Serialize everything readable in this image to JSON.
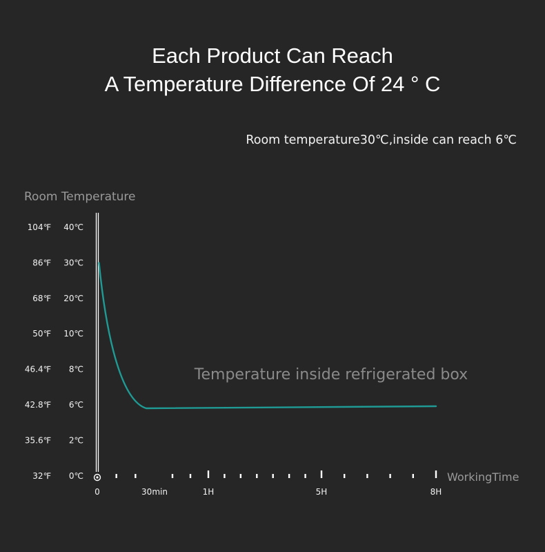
{
  "header": {
    "title_line_1": "Each Product Can Reach",
    "title_line_2": "A Temperature Difference Of 24 ° C",
    "subtitle": "Room temperature30℃,inside can reach 6℃"
  },
  "chart_data": {
    "type": "line",
    "title": "Each Product Can Reach A Temperature Difference Of 24 ° C",
    "subtitle": "Room temperature30℃,inside can reach 6℃",
    "ylabel": "Room Temperature",
    "xlabel": "WorkingTime",
    "y_ticks_celsius": [
      "0℃",
      "2℃",
      "6℃",
      "8℃",
      "10℃",
      "20℃",
      "30℃",
      "40℃"
    ],
    "y_ticks_fahrenheit": [
      "32℉",
      "35.6℉",
      "42.8℉",
      "46.4℉",
      "50℉",
      "68℉",
      "86℉",
      "104℉"
    ],
    "x_ticks": [
      "0",
      "30min",
      "1H",
      "5H",
      "8H"
    ],
    "x_minor_tick_count_per_interval": [
      2,
      2,
      6,
      4
    ],
    "series": [
      {
        "name": "Temperature inside refrigerated box",
        "color": "#1f9a94",
        "points": [
          {
            "t": "0",
            "celsius": 30
          },
          {
            "t": "30min",
            "celsius": 6
          },
          {
            "t": "1H",
            "celsius": 6
          },
          {
            "t": "5H",
            "celsius": 6
          },
          {
            "t": "8H",
            "celsius": 6
          }
        ]
      }
    ],
    "axis_color": "#ffffff",
    "background": "#262626",
    "grid": false
  }
}
